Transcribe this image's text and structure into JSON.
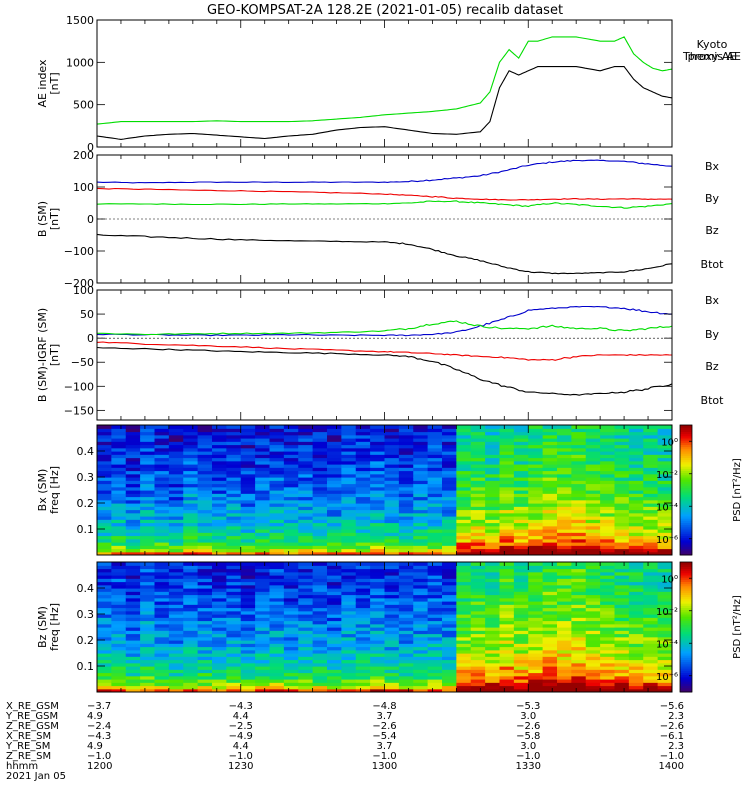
{
  "title": "GEO-KOMPSAT-2A 128.2E (2021-01-05) recalib dataset",
  "colors": {
    "black": "#000000",
    "green": "#00dd00",
    "red": "#ee0000",
    "blue": "#0000cc"
  },
  "icons": {
    "plot": "line-plot-panel",
    "spectrogram": "spectrogram-panel",
    "colorbar": "psd-colorbar"
  },
  "chart_data": [
    {
      "type": "line",
      "ylabel": "AE index\n[nT]",
      "ylim": [
        0,
        1500
      ],
      "yticks": [
        0,
        500,
        1000,
        1500
      ],
      "xlim": [
        0,
        120
      ],
      "series": [
        {
          "name": "Kyoto\nproxy AE",
          "color": "#00dd00",
          "x": [
            0,
            5,
            10,
            15,
            20,
            25,
            30,
            35,
            40,
            45,
            50,
            55,
            60,
            65,
            70,
            75,
            80,
            82,
            84,
            86,
            88,
            90,
            92,
            95,
            100,
            105,
            108,
            110,
            112,
            114,
            116,
            118,
            120
          ],
          "y": [
            270,
            300,
            300,
            300,
            300,
            310,
            300,
            300,
            300,
            310,
            330,
            350,
            380,
            400,
            420,
            450,
            520,
            650,
            1000,
            1150,
            1050,
            1250,
            1250,
            1300,
            1300,
            1250,
            1250,
            1300,
            1100,
            1000,
            930,
            900,
            920
          ]
        },
        {
          "name": "Themis AE",
          "color": "#000000",
          "x": [
            0,
            5,
            10,
            15,
            20,
            25,
            30,
            35,
            40,
            45,
            50,
            55,
            60,
            65,
            70,
            75,
            80,
            82,
            84,
            86,
            88,
            90,
            92,
            95,
            100,
            105,
            108,
            110,
            112,
            114,
            116,
            118,
            120
          ],
          "y": [
            130,
            90,
            130,
            150,
            160,
            140,
            120,
            100,
            130,
            150,
            200,
            230,
            240,
            200,
            160,
            150,
            180,
            300,
            700,
            900,
            850,
            900,
            950,
            950,
            950,
            900,
            950,
            950,
            800,
            700,
            650,
            600,
            580
          ]
        }
      ]
    },
    {
      "type": "line",
      "ylabel": "B (SM)\n[nT]",
      "ylim": [
        -200,
        200
      ],
      "yticks": [
        -200,
        -100,
        0,
        100,
        200
      ],
      "xlim": [
        0,
        120
      ],
      "series": [
        {
          "name": "Bx",
          "color": "#0000cc",
          "x": [
            0,
            10,
            20,
            30,
            40,
            50,
            60,
            65,
            70,
            75,
            80,
            85,
            90,
            95,
            100,
            105,
            110,
            115,
            120
          ],
          "y": [
            115,
            113,
            115,
            115,
            115,
            115,
            115,
            117,
            122,
            128,
            135,
            150,
            168,
            178,
            183,
            183,
            180,
            172,
            165
          ]
        },
        {
          "name": "By",
          "color": "#00dd00",
          "x": [
            0,
            10,
            20,
            30,
            40,
            50,
            60,
            65,
            70,
            75,
            80,
            85,
            90,
            95,
            100,
            105,
            110,
            115,
            120
          ],
          "y": [
            47,
            47,
            46,
            46,
            47,
            47,
            48,
            50,
            55,
            55,
            50,
            45,
            40,
            50,
            45,
            40,
            35,
            40,
            48
          ]
        },
        {
          "name": "Bz",
          "color": "#ee0000",
          "x": [
            0,
            10,
            20,
            30,
            40,
            50,
            60,
            65,
            70,
            75,
            80,
            85,
            90,
            95,
            100,
            105,
            110,
            115,
            120
          ],
          "y": [
            95,
            93,
            90,
            88,
            85,
            82,
            78,
            74,
            70,
            65,
            62,
            60,
            60,
            62,
            63,
            62,
            63,
            62,
            62
          ]
        },
        {
          "name": "Btot",
          "color": "#000000",
          "x": [
            0,
            10,
            20,
            30,
            40,
            50,
            60,
            65,
            70,
            75,
            80,
            85,
            90,
            95,
            100,
            105,
            110,
            115,
            120
          ],
          "y": [
            -50,
            -55,
            -60,
            -65,
            -68,
            -70,
            -72,
            -78,
            -95,
            -115,
            -130,
            -150,
            -165,
            -170,
            -170,
            -168,
            -165,
            -155,
            -140
          ]
        }
      ]
    },
    {
      "type": "line",
      "ylabel": "B (SM)-IGRF (SM)\n[nT]",
      "ylim": [
        -170,
        100
      ],
      "yticks": [
        -150,
        -100,
        -50,
        0,
        50,
        100
      ],
      "xlim": [
        0,
        120
      ],
      "series": [
        {
          "name": "Bx",
          "color": "#0000cc",
          "x": [
            0,
            10,
            20,
            30,
            40,
            50,
            60,
            65,
            70,
            75,
            80,
            85,
            90,
            95,
            100,
            105,
            110,
            115,
            120
          ],
          "y": [
            8,
            7,
            6,
            6,
            7,
            6,
            6,
            6,
            8,
            12,
            25,
            40,
            58,
            62,
            65,
            65,
            62,
            55,
            50
          ]
        },
        {
          "name": "By",
          "color": "#00dd00",
          "x": [
            0,
            10,
            20,
            30,
            40,
            50,
            60,
            65,
            70,
            75,
            80,
            85,
            90,
            95,
            100,
            105,
            110,
            115,
            120
          ],
          "y": [
            10,
            8,
            9,
            10,
            10,
            12,
            15,
            20,
            30,
            35,
            25,
            20,
            20,
            25,
            20,
            20,
            15,
            20,
            25
          ]
        },
        {
          "name": "Bz",
          "color": "#ee0000",
          "x": [
            0,
            10,
            20,
            30,
            40,
            50,
            60,
            65,
            70,
            75,
            80,
            85,
            90,
            95,
            100,
            105,
            110,
            115,
            120
          ],
          "y": [
            -8,
            -12,
            -15,
            -18,
            -22,
            -25,
            -28,
            -30,
            -32,
            -35,
            -38,
            -40,
            -45,
            -45,
            -38,
            -35,
            -35,
            -35,
            -35
          ]
        },
        {
          "name": "Btot",
          "color": "#000000",
          "x": [
            0,
            10,
            20,
            30,
            40,
            50,
            60,
            65,
            70,
            75,
            80,
            85,
            90,
            95,
            100,
            105,
            110,
            115,
            120
          ],
          "y": [
            -20,
            -22,
            -25,
            -28,
            -30,
            -32,
            -35,
            -38,
            -48,
            -65,
            -85,
            -100,
            -112,
            -115,
            -118,
            -115,
            -112,
            -105,
            -95
          ]
        }
      ]
    },
    {
      "type": "heatmap",
      "ylabel": "Bx (SM)\nfreq [Hz]",
      "ylim": [
        0,
        0.5
      ],
      "yticks": [
        0.1,
        0.2,
        0.3,
        0.4
      ],
      "xlim": [
        0,
        120
      ],
      "colorbar_label": "PSD [nT²/Hz]",
      "colorbar_ticks": [
        "10⁰",
        "10⁻²",
        "10⁻⁴",
        "10⁻⁶"
      ],
      "log_psd_range": [
        -7,
        1
      ],
      "time_blocks": [
        0,
        3,
        6,
        9,
        12,
        15,
        18,
        21,
        24,
        27,
        30,
        33,
        36,
        39,
        42,
        45,
        48,
        51,
        54,
        57,
        60,
        63,
        66,
        69,
        72,
        75,
        78,
        81,
        84,
        87,
        90,
        93,
        96,
        99,
        102,
        105,
        108,
        111,
        114,
        117
      ],
      "block_activity": [
        -4.0,
        -3.8,
        -4.1,
        -3.7,
        -3.9,
        -4.2,
        -3.6,
        -3.9,
        -4.0,
        -3.8,
        -4.1,
        -3.9,
        -3.7,
        -4.0,
        -3.8,
        -3.9,
        -4.1,
        -3.7,
        -3.8,
        -3.6,
        -3.9,
        -4.0,
        -3.8,
        -3.7,
        -3.9,
        -1.6,
        -1.4,
        -1.7,
        -1.2,
        -1.5,
        -1.3,
        -1.0,
        -1.1,
        -0.9,
        -1.2,
        -1.4,
        -1.5,
        -1.7,
        -1.6,
        -1.8
      ]
    },
    {
      "type": "heatmap",
      "ylabel": "Bz (SM)\nfreq [Hz]",
      "ylim": [
        0,
        0.5
      ],
      "yticks": [
        0.1,
        0.2,
        0.3,
        0.4
      ],
      "xlim": [
        0,
        120
      ],
      "colorbar_label": "PSD [nT²/Hz]",
      "colorbar_ticks": [
        "10⁰",
        "10⁻²",
        "10⁻⁴",
        "10⁻⁶"
      ],
      "log_psd_range": [
        -7,
        1
      ],
      "time_blocks": [
        0,
        3,
        6,
        9,
        12,
        15,
        18,
        21,
        24,
        27,
        30,
        33,
        36,
        39,
        42,
        45,
        48,
        51,
        54,
        57,
        60,
        63,
        66,
        69,
        72,
        75,
        78,
        81,
        84,
        87,
        90,
        93,
        96,
        99,
        102,
        105,
        108,
        111,
        114,
        117
      ],
      "block_activity": [
        -3.6,
        -3.5,
        -3.8,
        -3.4,
        -3.7,
        -3.9,
        -3.5,
        -3.6,
        -3.8,
        -3.7,
        -3.9,
        -3.6,
        -3.5,
        -3.8,
        -3.6,
        -3.7,
        -3.9,
        -3.5,
        -3.6,
        -3.4,
        -3.7,
        -3.8,
        -3.6,
        -3.5,
        -3.7,
        -1.2,
        -1.0,
        -1.3,
        -0.8,
        -1.1,
        -0.9,
        -0.6,
        -0.7,
        -0.6,
        -0.9,
        -1.1,
        -1.2,
        -1.4,
        -1.3,
        -1.5
      ]
    }
  ],
  "x_axis": {
    "row_labels": [
      "X_RE_GSM",
      "Y_RE_GSM",
      "Z_RE_GSM",
      "X_RE_SM",
      "Y_RE_SM",
      "Z_RE_SM",
      "hhmm"
    ],
    "date": "2021 Jan 05",
    "ticks": [
      {
        "pos": 0,
        "values": [
          "−3.7",
          "4.9",
          "−2.4",
          "−4.3",
          "4.9",
          "−1.0",
          "1200"
        ]
      },
      {
        "pos": 30,
        "values": [
          "−4.3",
          "4.4",
          "−2.5",
          "−4.9",
          "4.4",
          "−1.0",
          "1230"
        ]
      },
      {
        "pos": 60,
        "values": [
          "−4.8",
          "3.7",
          "−2.6",
          "−5.4",
          "3.7",
          "−1.0",
          "1300"
        ]
      },
      {
        "pos": 90,
        "values": [
          "−5.3",
          "3.0",
          "−2.6",
          "−5.8",
          "3.0",
          "−1.0",
          "1330"
        ]
      },
      {
        "pos": 120,
        "values": [
          "−5.6",
          "2.3",
          "−2.6",
          "−6.1",
          "2.3",
          "−1.0",
          "1400"
        ]
      }
    ]
  }
}
